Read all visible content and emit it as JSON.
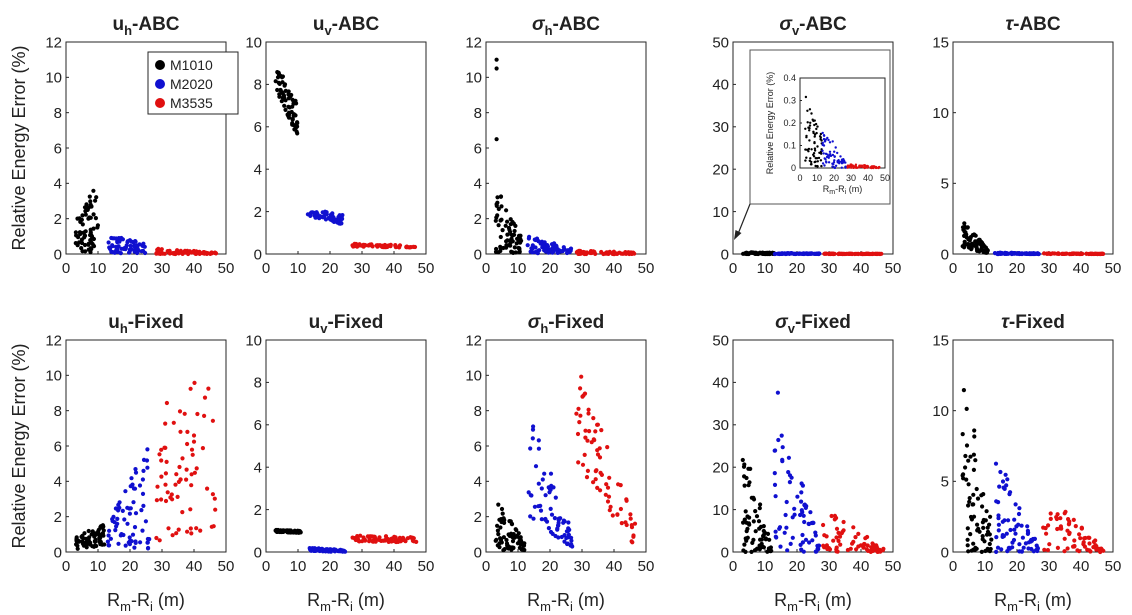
{
  "figure": {
    "ylabel": "Relative Energy Error (%)",
    "xlabel_main": "R",
    "xlabel_sub1": "m",
    "xlabel_mid": "-R",
    "xlabel_sub2": "i",
    "xlabel_end": " (m)"
  },
  "legend": [
    {
      "label": "M1010",
      "color": "#000000"
    },
    {
      "label": "M2020",
      "color": "#1010d0"
    },
    {
      "label": "M3535",
      "color": "#e01010"
    }
  ],
  "chart_data": [
    {
      "type": "scatter",
      "title_sym": "u",
      "title_sub": "h",
      "title_suffix": "-ABC",
      "sym_italic": false,
      "xlim": [
        0,
        50
      ],
      "ylim": [
        0,
        12
      ],
      "xticks": [
        0,
        10,
        20,
        30,
        40,
        50
      ],
      "yticks": [
        0,
        2,
        4,
        6,
        8,
        10,
        12
      ],
      "series": [
        {
          "name": "M1010",
          "color": "#000000",
          "x_range": [
            3,
            10
          ],
          "y_min": [
            0.2,
            0.05
          ],
          "y_max": [
            2.0,
            4.0
          ],
          "peak": 0
        },
        {
          "name": "M2020",
          "color": "#1010d0",
          "x_range": [
            13,
            25
          ],
          "y_min": [
            0.05,
            0.05
          ],
          "y_max": [
            1.1,
            0.6
          ],
          "peak": 0
        },
        {
          "name": "M3535",
          "color": "#e01010",
          "x_range": [
            28,
            47
          ],
          "y_min": [
            0.0,
            0.0
          ],
          "y_max": [
            0.3,
            0.1
          ],
          "peak": 0
        }
      ]
    },
    {
      "type": "scatter",
      "title_sym": "u",
      "title_sub": "v",
      "title_suffix": "-ABC",
      "sym_italic": false,
      "xlim": [
        0,
        50
      ],
      "ylim": [
        0,
        10
      ],
      "xticks": [
        0,
        10,
        20,
        30,
        40,
        50
      ],
      "yticks": [
        0,
        2,
        4,
        6,
        8,
        10
      ],
      "series": [
        {
          "name": "M1010",
          "color": "#000000",
          "x_range": [
            3,
            10
          ],
          "y_min": [
            7.8,
            5.5
          ],
          "y_max": [
            9.1,
            7.0
          ],
          "peak": 0
        },
        {
          "name": "M2020",
          "color": "#1010d0",
          "x_range": [
            13,
            24
          ],
          "y_min": [
            1.8,
            1.4
          ],
          "y_max": [
            2.15,
            1.85
          ],
          "peak": 0
        },
        {
          "name": "M3535",
          "color": "#e01010",
          "x_range": [
            27,
            47
          ],
          "y_min": [
            0.35,
            0.3
          ],
          "y_max": [
            0.5,
            0.4
          ],
          "peak": 0
        }
      ]
    },
    {
      "type": "scatter",
      "title_sym": "σ",
      "title_sub": "h",
      "title_suffix": "-ABC",
      "sym_italic": true,
      "xlim": [
        0,
        50
      ],
      "ylim": [
        0,
        12
      ],
      "xticks": [
        0,
        10,
        20,
        30,
        40,
        50
      ],
      "yticks": [
        0,
        2,
        4,
        6,
        8,
        10,
        12
      ],
      "series": [
        {
          "name": "M1010",
          "color": "#000000",
          "x_range": [
            3,
            11
          ],
          "y_min": [
            0.05,
            0.05
          ],
          "y_max": [
            4.0,
            1.0
          ],
          "peak": 11.0
        },
        {
          "name": "M2020",
          "color": "#1010d0",
          "x_range": [
            13,
            27
          ],
          "y_min": [
            0.05,
            0.05
          ],
          "y_max": [
            1.1,
            0.3
          ],
          "peak": 0
        },
        {
          "name": "M3535",
          "color": "#e01010",
          "x_range": [
            28,
            47
          ],
          "y_min": [
            0.0,
            0.0
          ],
          "y_max": [
            0.2,
            0.1
          ],
          "peak": 0
        }
      ]
    },
    {
      "type": "scatter",
      "title_sym": "σ",
      "title_sub": "v",
      "title_suffix": "-ABC",
      "sym_italic": true,
      "xlim": [
        0,
        50
      ],
      "ylim": [
        0,
        50
      ],
      "xticks": [
        0,
        10,
        20,
        30,
        40,
        50
      ],
      "yticks": [
        0,
        10,
        20,
        30,
        40,
        50
      ],
      "series": [
        {
          "name": "M1010",
          "color": "#000000",
          "x_range": [
            3,
            13
          ],
          "y_min": [
            0.0,
            0.0
          ],
          "y_max": [
            0.4,
            0.3
          ],
          "peak": 0
        },
        {
          "name": "M2020",
          "color": "#1010d0",
          "x_range": [
            13,
            27
          ],
          "y_min": [
            0.0,
            0.0
          ],
          "y_max": [
            0.25,
            0.15
          ],
          "peak": 0
        },
        {
          "name": "M3535",
          "color": "#e01010",
          "x_range": [
            28,
            47
          ],
          "y_min": [
            0.0,
            0.0
          ],
          "y_max": [
            0.1,
            0.05
          ],
          "peak": 0
        }
      ],
      "inset": {
        "ylabel": "Relative Energy Error (%)",
        "xlim": [
          0,
          50
        ],
        "ylim": [
          0,
          0.4
        ],
        "xticks": [
          0,
          10,
          20,
          30,
          40,
          50
        ],
        "yticks": [
          "0",
          "0.1",
          "0.2",
          "0.3",
          "0.4"
        ],
        "series": [
          {
            "name": "M1010",
            "color": "#000000",
            "x_range": [
              3,
              13
            ],
            "y_min": [
              0.02,
              0.0
            ],
            "y_max": [
              0.33,
              0.15
            ],
            "peak": 0
          },
          {
            "name": "M2020",
            "color": "#1010d0",
            "x_range": [
              13,
              27
            ],
            "y_min": [
              0.0,
              0.0
            ],
            "y_max": [
              0.19,
              0.03
            ],
            "peak": 0
          },
          {
            "name": "M3535",
            "color": "#e01010",
            "x_range": [
              28,
              47
            ],
            "y_min": [
              0.0,
              0.0
            ],
            "y_max": [
              0.02,
              0.005
            ],
            "peak": 0
          }
        ]
      }
    },
    {
      "type": "scatter",
      "title_sym": "τ",
      "title_sub": "",
      "title_suffix": "-ABC",
      "sym_italic": true,
      "xlim": [
        0,
        50
      ],
      "ylim": [
        0,
        15
      ],
      "xticks": [
        0,
        10,
        20,
        30,
        40,
        50
      ],
      "yticks": [
        0,
        5,
        10,
        15
      ],
      "series": [
        {
          "name": "M1010",
          "color": "#000000",
          "x_range": [
            3,
            11
          ],
          "y_min": [
            0.5,
            0.0
          ],
          "y_max": [
            2.4,
            0.3
          ],
          "peak": 0
        },
        {
          "name": "M2020",
          "color": "#1010d0",
          "x_range": [
            13,
            27
          ],
          "y_min": [
            0.0,
            0.0
          ],
          "y_max": [
            0.1,
            0.05
          ],
          "peak": 0
        },
        {
          "name": "M3535",
          "color": "#e01010",
          "x_range": [
            28,
            47
          ],
          "y_min": [
            0.0,
            0.0
          ],
          "y_max": [
            0.05,
            0.02
          ],
          "peak": 0
        }
      ]
    },
    {
      "type": "scatter",
      "title_sym": "u",
      "title_sub": "h",
      "title_suffix": "-Fixed",
      "sym_italic": false,
      "xlim": [
        0,
        50
      ],
      "ylim": [
        0,
        12
      ],
      "xticks": [
        0,
        10,
        20,
        30,
        40,
        50
      ],
      "yticks": [
        0,
        2,
        4,
        6,
        8,
        10,
        12
      ],
      "series": [
        {
          "name": "M1010",
          "color": "#000000",
          "x_range": [
            3,
            12
          ],
          "y_min": [
            0.1,
            0.4
          ],
          "y_max": [
            0.9,
            1.6
          ],
          "peak": 0
        },
        {
          "name": "M2020",
          "color": "#1010d0",
          "x_range": [
            13,
            26
          ],
          "y_min": [
            0.1,
            0.2
          ],
          "y_max": [
            1.5,
            6.5
          ],
          "peak": 0
        },
        {
          "name": "M3535",
          "color": "#e01010",
          "x_range": [
            28,
            47
          ],
          "y_min": [
            0.4,
            1.5
          ],
          "y_max": [
            8.0,
            10.6
          ],
          "peak": 0
        }
      ]
    },
    {
      "type": "scatter",
      "title_sym": "u",
      "title_sub": "v",
      "title_suffix": "-Fixed",
      "sym_italic": false,
      "xlim": [
        0,
        50
      ],
      "ylim": [
        0,
        10
      ],
      "xticks": [
        0,
        10,
        20,
        30,
        40,
        50
      ],
      "yticks": [
        0,
        2,
        4,
        6,
        8,
        10
      ],
      "series": [
        {
          "name": "M1010",
          "color": "#000000",
          "x_range": [
            3,
            11
          ],
          "y_min": [
            0.95,
            0.9
          ],
          "y_max": [
            1.05,
            1.0
          ],
          "peak": 0
        },
        {
          "name": "M2020",
          "color": "#1010d0",
          "x_range": [
            13,
            25
          ],
          "y_min": [
            0.05,
            0.0
          ],
          "y_max": [
            0.2,
            0.1
          ],
          "peak": 0
        },
        {
          "name": "M3535",
          "color": "#e01010",
          "x_range": [
            27,
            47
          ],
          "y_min": [
            0.5,
            0.45
          ],
          "y_max": [
            0.8,
            0.7
          ],
          "peak": 0
        }
      ]
    },
    {
      "type": "scatter",
      "title_sym": "σ",
      "title_sub": "h",
      "title_suffix": "-Fixed",
      "sym_italic": true,
      "xlim": [
        0,
        50
      ],
      "ylim": [
        0,
        12
      ],
      "xticks": [
        0,
        10,
        20,
        30,
        40,
        50
      ],
      "yticks": [
        0,
        2,
        4,
        6,
        8,
        10,
        12
      ],
      "series": [
        {
          "name": "M1010",
          "color": "#000000",
          "x_range": [
            3,
            12
          ],
          "y_min": [
            0.1,
            0.1
          ],
          "y_max": [
            3.0,
            0.6
          ],
          "peak": 0
        },
        {
          "name": "M2020",
          "color": "#1010d0",
          "x_range": [
            13,
            27
          ],
          "y_min": [
            2.0,
            0.2
          ],
          "y_max": [
            8.6,
            1.0
          ],
          "peak": 0
        },
        {
          "name": "M3535",
          "color": "#e01010",
          "x_range": [
            28,
            47
          ],
          "y_min": [
            5.0,
            0.2
          ],
          "y_max": [
            11.0,
            1.5
          ],
          "peak": 0
        }
      ]
    },
    {
      "type": "scatter",
      "title_sym": "σ",
      "title_sub": "v",
      "title_suffix": "-Fixed",
      "sym_italic": true,
      "xlim": [
        0,
        50
      ],
      "ylim": [
        0,
        50
      ],
      "xticks": [
        0,
        10,
        20,
        30,
        40,
        50
      ],
      "yticks": [
        0,
        10,
        20,
        30,
        40,
        50
      ],
      "series": [
        {
          "name": "M1010",
          "color": "#000000",
          "x_range": [
            3,
            12
          ],
          "y_min": [
            0.0,
            0.0
          ],
          "y_max": [
            26.0,
            2.0
          ],
          "peak": 0
        },
        {
          "name": "M2020",
          "color": "#1010d0",
          "x_range": [
            13,
            27
          ],
          "y_min": [
            0.0,
            0.0
          ],
          "y_max": [
            42.0,
            2.0
          ],
          "peak": 0
        },
        {
          "name": "M3535",
          "color": "#e01010",
          "x_range": [
            28,
            47
          ],
          "y_min": [
            0.0,
            0.0
          ],
          "y_max": [
            11.0,
            0.8
          ],
          "peak": 0
        }
      ]
    },
    {
      "type": "scatter",
      "title_sym": "τ",
      "title_sub": "",
      "title_suffix": "-Fixed",
      "sym_italic": true,
      "xlim": [
        0,
        50
      ],
      "ylim": [
        0,
        15
      ],
      "xticks": [
        0,
        10,
        20,
        30,
        40,
        50
      ],
      "yticks": [
        0,
        5,
        10,
        15
      ],
      "series": [
        {
          "name": "M1010",
          "color": "#000000",
          "x_range": [
            3,
            12
          ],
          "y_min": [
            0.0,
            0.0
          ],
          "y_max": [
            13.5,
            2.0
          ],
          "peak": 0
        },
        {
          "name": "M2020",
          "color": "#1010d0",
          "x_range": [
            13,
            27
          ],
          "y_min": [
            0.0,
            0.0
          ],
          "y_max": [
            7.3,
            0.3
          ],
          "peak": 0
        },
        {
          "name": "M3535",
          "color": "#e01010",
          "x_range": [
            28,
            47
          ],
          "y_min": [
            0.0,
            0.0
          ],
          "y_max": [
            4.8,
            0.2
          ],
          "peak": 0
        }
      ]
    }
  ]
}
